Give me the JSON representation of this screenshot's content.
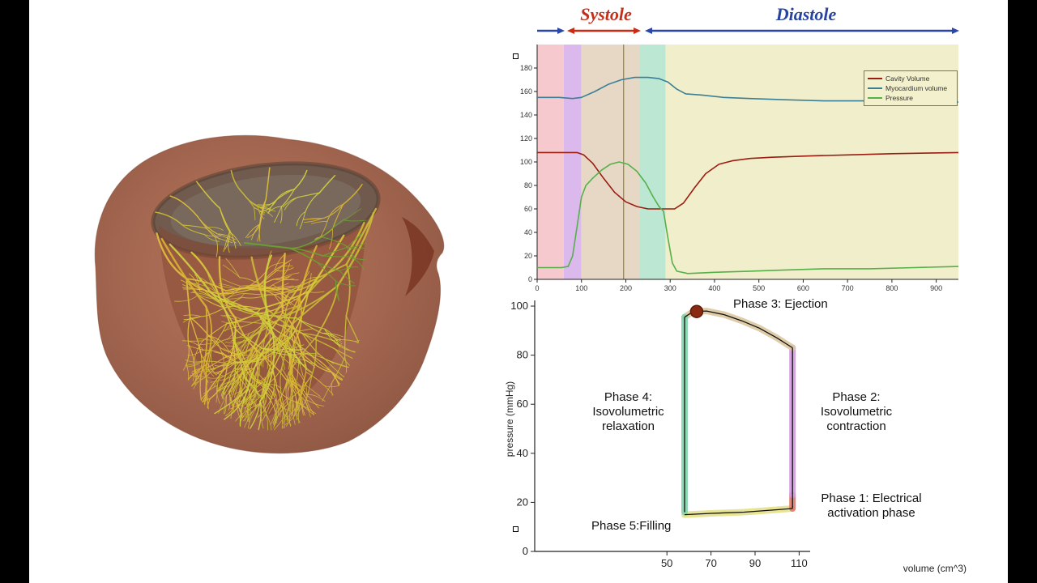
{
  "header": {
    "systole": "Systole",
    "diastole": "Diastole"
  },
  "colors": {
    "systole_text": "#c2301a",
    "diastole_text": "#27439f",
    "arrow_red": "#cc2a12",
    "arrow_blue": "#2a47a8"
  },
  "chart_data": [
    {
      "type": "line",
      "name": "hemodynamics-timeseries",
      "title": "",
      "xlabel": "",
      "ylabel": "",
      "xlim": [
        0,
        950
      ],
      "ylim": [
        0,
        200
      ],
      "xticks": [
        0,
        100,
        200,
        300,
        400,
        500,
        600,
        700,
        800,
        900
      ],
      "yticks": [
        0,
        20,
        40,
        60,
        80,
        100,
        120,
        140,
        160,
        180
      ],
      "grid": false,
      "legend_position": "top-right",
      "time_marker": 195,
      "bands": [
        {
          "name": "electrical-activation",
          "from": 0,
          "to": 60,
          "color": "#f5c9ce"
        },
        {
          "name": "isovolumetric-contraction",
          "from": 60,
          "to": 100,
          "color": "#dcb9ec"
        },
        {
          "name": "ejection",
          "from": 100,
          "to": 232,
          "color": "#e7d8c6"
        },
        {
          "name": "isovolumetric-relaxation",
          "from": 232,
          "to": 290,
          "color": "#bce8d3"
        },
        {
          "name": "filling",
          "from": 290,
          "to": 950,
          "color": "#f0eecb"
        }
      ],
      "series": [
        {
          "name": "Cavity Volume",
          "slug": "cavity-volume",
          "color": "#9b1c10",
          "points": [
            [
              0,
              108
            ],
            [
              40,
              108
            ],
            [
              70,
              108
            ],
            [
              90,
              108
            ],
            [
              105,
              106
            ],
            [
              125,
              99
            ],
            [
              150,
              86
            ],
            [
              175,
              74
            ],
            [
              200,
              66
            ],
            [
              225,
              62
            ],
            [
              250,
              60
            ],
            [
              280,
              60
            ],
            [
              310,
              60
            ],
            [
              330,
              65
            ],
            [
              355,
              78
            ],
            [
              380,
              90
            ],
            [
              410,
              98
            ],
            [
              440,
              101
            ],
            [
              480,
              103
            ],
            [
              530,
              104
            ],
            [
              600,
              105
            ],
            [
              700,
              106
            ],
            [
              800,
              107
            ],
            [
              950,
              108
            ]
          ]
        },
        {
          "name": "Myocardium volume",
          "slug": "myocardium-volume",
          "color": "#3a7f96",
          "points": [
            [
              0,
              155
            ],
            [
              50,
              155
            ],
            [
              80,
              154
            ],
            [
              100,
              155
            ],
            [
              130,
              160
            ],
            [
              160,
              166
            ],
            [
              190,
              170
            ],
            [
              220,
              172
            ],
            [
              250,
              172
            ],
            [
              275,
              171
            ],
            [
              295,
              168
            ],
            [
              315,
              162
            ],
            [
              335,
              158
            ],
            [
              370,
              157
            ],
            [
              420,
              155
            ],
            [
              480,
              154
            ],
            [
              560,
              153
            ],
            [
              650,
              152
            ],
            [
              760,
              152
            ],
            [
              880,
              151
            ],
            [
              950,
              151
            ]
          ]
        },
        {
          "name": "Pressure",
          "slug": "pressure",
          "color": "#55b04a",
          "points": [
            [
              0,
              10
            ],
            [
              30,
              10
            ],
            [
              55,
              10
            ],
            [
              70,
              11
            ],
            [
              80,
              20
            ],
            [
              90,
              45
            ],
            [
              100,
              70
            ],
            [
              110,
              80
            ],
            [
              125,
              86
            ],
            [
              145,
              93
            ],
            [
              165,
              98
            ],
            [
              185,
              100
            ],
            [
              205,
              98
            ],
            [
              225,
              92
            ],
            [
              245,
              82
            ],
            [
              262,
              70
            ],
            [
              275,
              62
            ],
            [
              285,
              58
            ],
            [
              295,
              35
            ],
            [
              305,
              14
            ],
            [
              315,
              7
            ],
            [
              340,
              5
            ],
            [
              400,
              6
            ],
            [
              480,
              7
            ],
            [
              560,
              8
            ],
            [
              650,
              9
            ],
            [
              750,
              9
            ],
            [
              850,
              10
            ],
            [
              950,
              11
            ]
          ]
        }
      ]
    },
    {
      "type": "line",
      "name": "pressure-volume-loop",
      "title": "",
      "xlabel": "volume (cm^3)",
      "ylabel": "pressure (mmHg)",
      "xlim": [
        -10,
        115
      ],
      "ylim": [
        0,
        101
      ],
      "xticks": [
        50,
        70,
        90,
        110
      ],
      "yticks": [
        0,
        20,
        40,
        60,
        80,
        100
      ],
      "grid": false,
      "segments": [
        {
          "name": "filling",
          "color": "#e6e18a",
          "points": [
            [
              58,
              15
            ],
            [
              70,
              15.5
            ],
            [
              85,
              16
            ],
            [
              100,
              17
            ],
            [
              107,
              17.5
            ]
          ]
        },
        {
          "name": "electrical-activation",
          "color": "#e2796b",
          "points": [
            [
              107,
              17.5
            ],
            [
              107,
              23
            ]
          ]
        },
        {
          "name": "isovolumetric-contraction",
          "color": "#d49ae0",
          "points": [
            [
              107,
              23
            ],
            [
              107,
              83
            ]
          ]
        },
        {
          "name": "ejection",
          "color": "#dcc6a0",
          "points": [
            [
              107,
              83
            ],
            [
              100,
              87
            ],
            [
              92,
              91
            ],
            [
              84,
              94
            ],
            [
              76,
              96.5
            ],
            [
              68,
              98
            ],
            [
              62,
              97.8
            ],
            [
              58,
              95.5
            ]
          ]
        },
        {
          "name": "isovolumetric-relaxation",
          "color": "#82d4ab",
          "points": [
            [
              58,
              95.5
            ],
            [
              58,
              16
            ]
          ]
        }
      ],
      "marker": {
        "x": 63.5,
        "y": 97.8,
        "color": "#8a2a12"
      },
      "labels": {
        "phase3": "Phase 3: Ejection",
        "phase4": "Phase 4:\nIsovolumetric\nrelaxation",
        "phase2": "Phase 2:\nIsovolumetric\ncontraction",
        "phase1": "Phase 1: Electrical\nactivation phase",
        "phase5": "Phase 5:Filling"
      }
    }
  ]
}
